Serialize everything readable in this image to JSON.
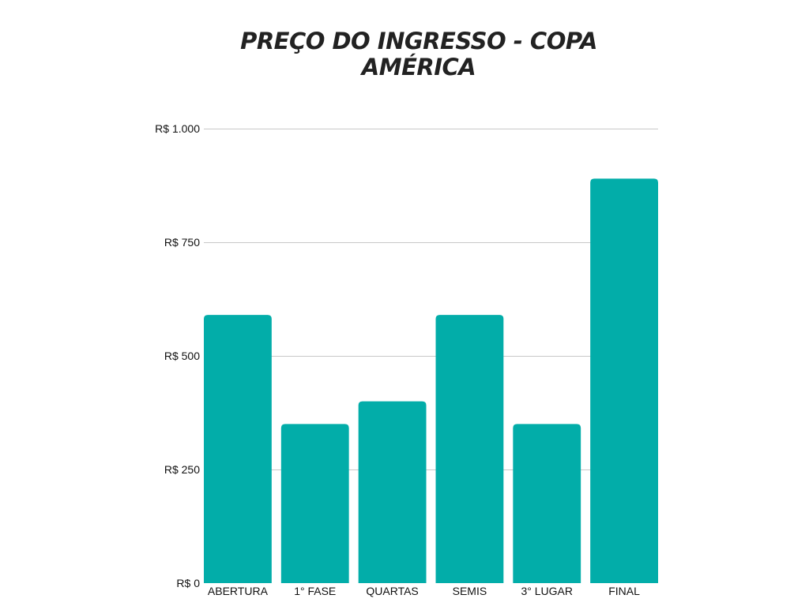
{
  "chart_data": {
    "type": "bar",
    "title": "PREÇO DO INGRESSO - COPA AMÉRICA",
    "categories": [
      "ABERTURA",
      "1° FASE",
      "QUARTAS",
      "SEMIS",
      "3° LUGAR",
      "FINAL"
    ],
    "values": [
      590,
      350,
      400,
      590,
      350,
      890
    ],
    "ylim": [
      0,
      1000
    ],
    "yticks": [
      0,
      250,
      500,
      750,
      1000
    ],
    "ytick_labels": [
      "R$ 0",
      "R$ 250",
      "R$ 500",
      "R$ 750",
      "R$ 1.000"
    ],
    "xlabel": "",
    "ylabel": "",
    "grid": true,
    "legend": "none",
    "bar_color": "#02ada9"
  }
}
